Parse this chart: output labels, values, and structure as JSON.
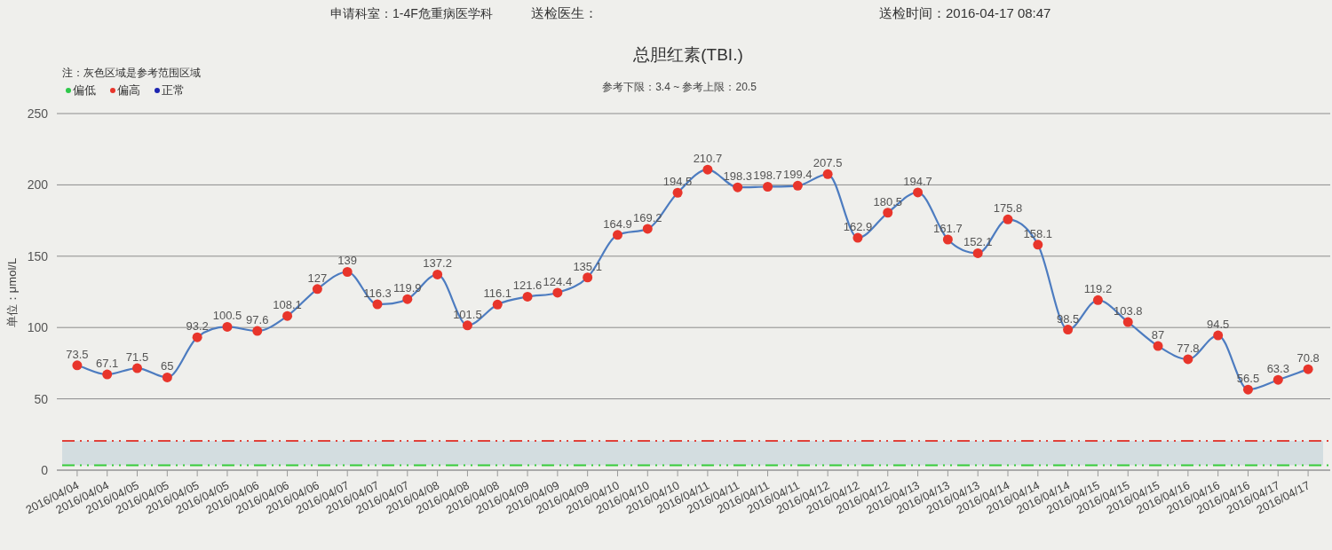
{
  "chart_data": {
    "type": "line",
    "title": "总胆红素(TBI.)",
    "subtitle": "参考下限：3.4 ~ 参考上限：20.5",
    "ylabel": "单位：μmol/L",
    "annotations": [
      "申请科室：1-4F危重病医学科",
      "送检医生：",
      "送检时间：2016-04-17 08:47",
      "注：灰色区域是参考范围区域"
    ],
    "categories": [
      "2016/04/04",
      "2016/04/04",
      "2016/04/05",
      "2016/04/05",
      "2016/04/05",
      "2016/04/05",
      "2016/04/06",
      "2016/04/06",
      "2016/04/06",
      "2016/04/07",
      "2016/04/07",
      "2016/04/07",
      "2016/04/08",
      "2016/04/08",
      "2016/04/08",
      "2016/04/09",
      "2016/04/09",
      "2016/04/09",
      "2016/04/10",
      "2016/04/10",
      "2016/04/10",
      "2016/04/11",
      "2016/04/11",
      "2016/04/11",
      "2016/04/11",
      "2016/04/12",
      "2016/04/12",
      "2016/04/12",
      "2016/04/13",
      "2016/04/13",
      "2016/04/13",
      "2016/04/14",
      "2016/04/14",
      "2016/04/14",
      "2016/04/15",
      "2016/04/15",
      "2016/04/15",
      "2016/04/16",
      "2016/04/16",
      "2016/04/16",
      "2016/04/17",
      "2016/04/17"
    ],
    "series": [
      {
        "color": "#4d7cc0",
        "marker": "none",
        "values": [
          73.5,
          67.1,
          71.5,
          65,
          93.2,
          100.5,
          97.6,
          108.1,
          127,
          139,
          116.3,
          119.9,
          137.2,
          101.5,
          116.1,
          121.6,
          124.4,
          135.1,
          164.9,
          169.2,
          194.5,
          210.7,
          198.3,
          198.7,
          199.4,
          207.5,
          162.9,
          180.5,
          194.7,
          161.7,
          152.1,
          175.8,
          158.1,
          98.5,
          119.2,
          103.8,
          87,
          77.8,
          94.5,
          56.5,
          63.3,
          70.8
        ]
      },
      {
        "type": "scatter",
        "name": "偏低",
        "color": "#2ec84a",
        "values": [
          null,
          null,
          null,
          null,
          null,
          null,
          null,
          null,
          null,
          null,
          null,
          null,
          null,
          null,
          null,
          null,
          null,
          null,
          null,
          null,
          null,
          null,
          null,
          null,
          null,
          null,
          null,
          null,
          null,
          null,
          null,
          null,
          null,
          null,
          null,
          null,
          null,
          null,
          null,
          null,
          null,
          null
        ]
      },
      {
        "type": "scatter",
        "name": "偏高",
        "color": "#e8352b",
        "values": [
          73.5,
          67.1,
          71.5,
          65,
          93.2,
          100.5,
          97.6,
          108.1,
          127,
          139,
          116.3,
          119.9,
          137.2,
          101.5,
          116.1,
          121.6,
          124.4,
          135.1,
          164.9,
          169.2,
          194.5,
          210.7,
          198.3,
          198.7,
          199.4,
          207.5,
          162.9,
          180.5,
          194.7,
          161.7,
          152.1,
          175.8,
          158.1,
          98.5,
          119.2,
          103.8,
          87,
          77.8,
          94.5,
          56.5,
          63.3,
          70.8
        ],
        "value_labels": [
          "73.5",
          "67.1",
          "71.5",
          "65",
          "93.2",
          "100.5",
          "97.6",
          "108.1",
          "127",
          "139",
          "116.3",
          "119.9",
          "137.2",
          "101.5",
          "116.1",
          "121.6",
          "124.4",
          "135.1",
          "164.9",
          "169.2",
          "194.5",
          "210.7",
          "198.3",
          "198.7",
          "199.4",
          "207.5",
          "162.9",
          "180.5",
          "194.7",
          "161.7",
          "152.1",
          "175.8",
          "158.1",
          "98.5",
          "119.2",
          "103.8",
          "87",
          "77.8",
          "94.5",
          "56.5",
          "63.3",
          "70.8"
        ]
      },
      {
        "type": "scatter",
        "name": "正常",
        "color": "#1c24b0",
        "values": [
          null,
          null,
          null,
          null,
          null,
          null,
          null,
          null,
          null,
          null,
          null,
          null,
          null,
          null,
          null,
          null,
          null,
          null,
          null,
          null,
          null,
          null,
          null,
          null,
          null,
          null,
          null,
          null,
          null,
          null,
          null,
          null,
          null,
          null,
          null,
          null,
          null,
          null,
          null,
          null,
          null,
          null
        ]
      }
    ],
    "ylim": [
      0,
      250
    ],
    "yticks": [
      0,
      50,
      100,
      150,
      200,
      250
    ],
    "ref_lines": [
      {
        "axis": "y",
        "value": 20.5,
        "color": "#e0413a",
        "line_style": "dashdot"
      },
      {
        "axis": "y",
        "value": 3.4,
        "color": "#37cc3a",
        "line_style": "dashdot"
      }
    ],
    "bands": [
      {
        "axis": "y",
        "from": 3.4,
        "to": 20.5,
        "color": "#d3dde0"
      }
    ],
    "grid": "y",
    "legend": "top left",
    "marker": "circle",
    "line_style": "solid"
  }
}
